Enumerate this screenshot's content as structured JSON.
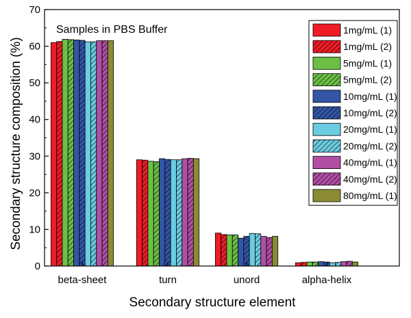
{
  "chart_data": {
    "type": "bar",
    "title": "",
    "annotation": "Samples in PBS Buffer",
    "xlabel": "Secondary structure element",
    "ylabel": "Secondary structure composition (%)",
    "ylim": [
      0,
      70
    ],
    "yticks": [
      0,
      10,
      20,
      30,
      40,
      50,
      60,
      70
    ],
    "grid": false,
    "legend_position": "top-right",
    "categories": [
      "beta-sheet",
      "turn",
      "unord",
      "alpha-helix"
    ],
    "series": [
      {
        "name": "1mg/mL (1)",
        "color": "#ee1c25",
        "hatch": false,
        "values": [
          61.0,
          29.0,
          9.0,
          0.9
        ]
      },
      {
        "name": "1mg/mL (2)",
        "color": "#ee1c25",
        "hatch": true,
        "values": [
          61.3,
          28.9,
          8.6,
          1.0
        ]
      },
      {
        "name": "5mg/mL (1)",
        "color": "#6cbf45",
        "hatch": false,
        "values": [
          61.9,
          28.6,
          8.5,
          1.1
        ]
      },
      {
        "name": "5mg/mL (2)",
        "color": "#6cbf45",
        "hatch": true,
        "values": [
          61.8,
          28.5,
          8.5,
          1.1
        ]
      },
      {
        "name": "10mg/mL (1)",
        "color": "#3355a6",
        "hatch": false,
        "values": [
          61.7,
          29.3,
          7.6,
          1.2
        ]
      },
      {
        "name": "10mg/mL (2)",
        "color": "#3355a6",
        "hatch": true,
        "values": [
          61.6,
          29.1,
          8.1,
          1.1
        ]
      },
      {
        "name": "20mg/mL (1)",
        "color": "#6ccce1",
        "hatch": false,
        "values": [
          61.2,
          29.0,
          8.9,
          0.9
        ]
      },
      {
        "name": "20mg/mL (2)",
        "color": "#6ccce1",
        "hatch": true,
        "values": [
          61.2,
          29.0,
          8.8,
          1.0
        ]
      },
      {
        "name": "40mg/mL (1)",
        "color": "#b04ea4",
        "hatch": false,
        "values": [
          61.5,
          29.3,
          8.1,
          1.2
        ]
      },
      {
        "name": "40mg/mL (2)",
        "color": "#b04ea4",
        "hatch": true,
        "values": [
          61.5,
          29.4,
          7.8,
          1.3
        ]
      },
      {
        "name": "80mg/mL (1)",
        "color": "#8b8b35",
        "hatch": false,
        "values": [
          61.5,
          29.3,
          8.1,
          1.1
        ]
      }
    ]
  }
}
